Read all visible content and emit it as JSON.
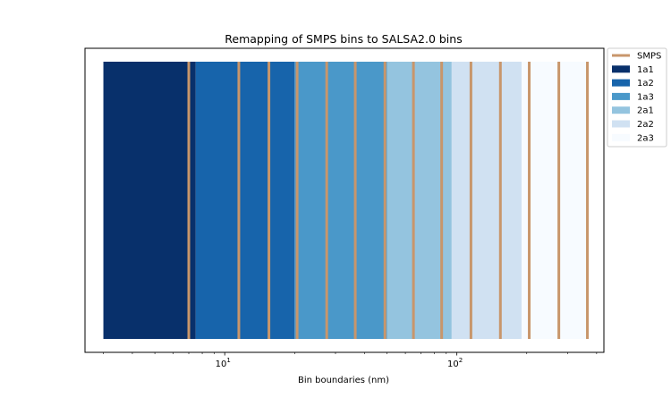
{
  "chart_data": {
    "type": "bar",
    "title": "Remapping of SMPS bins to SALSA2.0 bins",
    "xlabel": "Bin boundaries (nm)",
    "ylabel": "",
    "xscale": "log",
    "xlim": [
      2.5,
      430
    ],
    "grid": false,
    "legend_position": "outside-top-right",
    "x_ticks": [
      {
        "value": 10,
        "base": "10",
        "exponent": "1"
      },
      {
        "value": 100,
        "base": "10",
        "exponent": "2"
      }
    ],
    "bins": [
      {
        "name": "1a1",
        "start": 3.0,
        "end": 7.5,
        "color": "#08306b"
      },
      {
        "name": "1a2",
        "start": 7.5,
        "end": 20.0,
        "color": "#1764ab"
      },
      {
        "name": "1a3",
        "start": 20.0,
        "end": 50.0,
        "color": "#4a98c9"
      },
      {
        "name": "2a1",
        "start": 50.0,
        "end": 95.0,
        "color": "#94c4df"
      },
      {
        "name": "2a2",
        "start": 95.0,
        "end": 190.0,
        "color": "#d0e1f2"
      },
      {
        "name": "2a3",
        "start": 190.0,
        "end": 370.0,
        "color": "#f7fbff"
      }
    ],
    "smps": {
      "name": "SMPS",
      "color": "#c8966b",
      "boundaries": [
        7.0,
        11.5,
        15.5,
        20.5,
        27.5,
        36.5,
        49.0,
        65.0,
        86.0,
        115.0,
        154.0,
        205.0,
        275.0,
        365.0
      ]
    }
  }
}
